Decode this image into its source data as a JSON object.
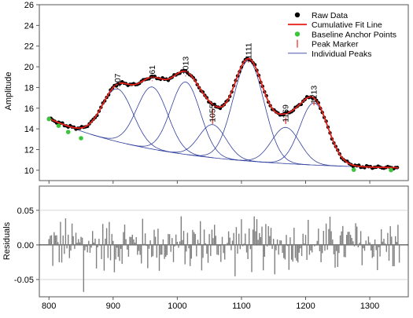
{
  "chart_data": [
    {
      "type": "line",
      "ylabel": "Amplitude",
      "xlim": [
        785,
        1360
      ],
      "ylim": [
        9.0,
        26.0
      ],
      "xticks": [
        800,
        900,
        1000,
        1100,
        1200,
        1300
      ],
      "yticks": [
        10,
        12,
        14,
        16,
        18,
        20,
        22,
        24,
        26
      ],
      "legend": {
        "position": "top-right",
        "entries": [
          {
            "label": "Raw Data",
            "color": "#000000",
            "marker": "dot"
          },
          {
            "label": "Cumulative Fit Line",
            "color": "#e8231b",
            "marker": "line"
          },
          {
            "label": "Baseline Anchor Points",
            "color": "#3cc43c",
            "marker": "dot"
          },
          {
            "label": "Peak Marker",
            "color": "#e8231b",
            "marker": "tick"
          },
          {
            "label": "Individual Peaks",
            "color": "#2f3f9f",
            "marker": "thin-line"
          }
        ]
      },
      "baseline": {
        "a": 10.0,
        "b": 5.0,
        "decay": 180,
        "start": 800
      },
      "baseline_anchor_points": [
        {
          "x": 800,
          "y": 14.95
        },
        {
          "x": 815,
          "y": 14.3
        },
        {
          "x": 830,
          "y": 13.7
        },
        {
          "x": 850,
          "y": 13.1
        },
        {
          "x": 1275,
          "y": 10.05
        },
        {
          "x": 1333,
          "y": 10.02
        }
      ],
      "peaks": [
        {
          "label": "907",
          "center": 907,
          "amplitude": 5.1,
          "width": 24,
          "height": 17.8
        },
        {
          "label": "961",
          "center": 961,
          "amplitude": 6.0,
          "width": 24,
          "height": 18.6
        },
        {
          "label": "1013",
          "center": 1013,
          "amplitude": 7.0,
          "width": 23,
          "height": 19.0
        },
        {
          "label": "1055",
          "center": 1055,
          "amplitude": 3.2,
          "width": 21,
          "height": 14.4
        },
        {
          "label": "1111",
          "center": 1111,
          "amplitude": 9.7,
          "width": 24,
          "height": 20.5
        },
        {
          "label": "1169",
          "center": 1169,
          "amplitude": 3.5,
          "width": 22,
          "height": 14.4
        },
        {
          "label": "1213",
          "center": 1213,
          "amplitude": 6.0,
          "width": 22,
          "height": 16.2
        }
      ],
      "raw_data": {
        "x_start": 800,
        "x_end": 1345,
        "step": 3
      }
    },
    {
      "type": "bar",
      "ylabel": "Residuals",
      "xlim": [
        785,
        1360
      ],
      "ylim": [
        -0.075,
        0.085
      ],
      "xticks": [
        800,
        900,
        1000,
        1100,
        1200,
        1300
      ],
      "yticks": [
        -0.05,
        0.0,
        0.05
      ],
      "ytick_labels": [
        "-0.05",
        "0.00",
        "0.05"
      ],
      "grid": "horizontal",
      "color": "#808080",
      "x_start": 800,
      "x_end": 1347,
      "step": 2,
      "amplitude": 0.05,
      "spikes": [
        {
          "x": 1095,
          "value": 0.082
        },
        {
          "x": 1141,
          "value": -0.07
        },
        {
          "x": 854,
          "value": -0.068
        },
        {
          "x": 997,
          "value": -0.067
        },
        {
          "x": 1199,
          "value": 0.068
        },
        {
          "x": 1269,
          "value": 0.067
        },
        {
          "x": 1341,
          "value": -0.07
        },
        {
          "x": 949,
          "value": 0.065
        },
        {
          "x": 1051,
          "value": -0.064
        }
      ]
    }
  ]
}
